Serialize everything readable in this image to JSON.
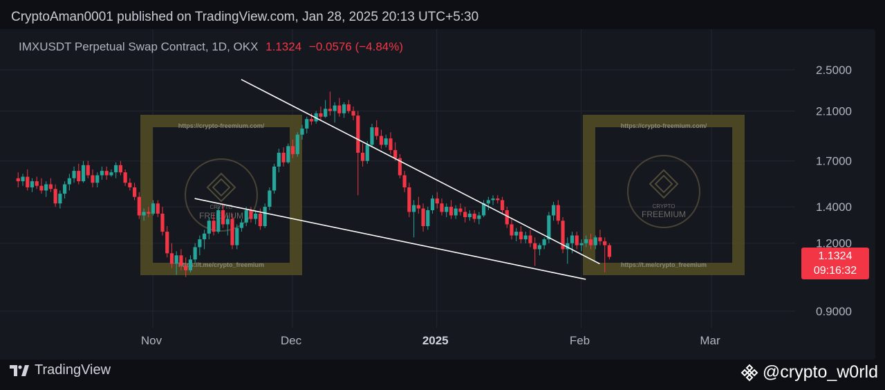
{
  "header": {
    "publisher_line": "CryptoAman0001 published on TradingView.com, Jan 28, 2025 20:13 UTC+5:30"
  },
  "symbol": {
    "name": "IMXUSDT Perpetual Swap Contract, 1D, OKX",
    "last_price": "1.1324",
    "change": "−0.0576",
    "change_pct": "(−4.84%)"
  },
  "price_tag": {
    "price": "1.1324",
    "countdown": "09:16:32"
  },
  "watermark": {
    "url_top": "https://crypto-freemium.com/",
    "url_bottom": "https://t.me/crypto_freemium",
    "brand_small": "CRYPTO",
    "brand_big": "FREEMIUM"
  },
  "footer": {
    "logo_text": "TradingView",
    "handle": "@crypto_w0rld"
  },
  "colors": {
    "up": "#26a69a",
    "down": "#f23645",
    "background": "#161820",
    "trendline": "#ffffff",
    "watermark": "#5c5424"
  },
  "chart_data": {
    "type": "candlestick",
    "scale": "log",
    "y_ticks": [
      "0.9000",
      "1.2000",
      "1.4000",
      "1.7000",
      "2.1000",
      "2.5000"
    ],
    "y_tick_values": [
      0.9,
      1.2,
      1.4,
      1.7,
      2.1,
      2.5
    ],
    "x_ticks": [
      "Nov",
      "Dec",
      "2025",
      "Feb",
      "Mar"
    ],
    "x_tick_dates": [
      "2024-11-01",
      "2024-12-01",
      "2025-01-01",
      "2025-02-01",
      "2025-03-01"
    ],
    "start_date": "2024-10-01",
    "ohlc": [
      [
        1.58,
        1.62,
        1.52,
        1.56
      ],
      [
        1.56,
        1.61,
        1.53,
        1.59
      ],
      [
        1.59,
        1.64,
        1.5,
        1.52
      ],
      [
        1.52,
        1.58,
        1.49,
        1.56
      ],
      [
        1.56,
        1.59,
        1.51,
        1.53
      ],
      [
        1.53,
        1.58,
        1.48,
        1.5
      ],
      [
        1.5,
        1.56,
        1.46,
        1.54
      ],
      [
        1.54,
        1.58,
        1.49,
        1.51
      ],
      [
        1.51,
        1.54,
        1.4,
        1.42
      ],
      [
        1.42,
        1.5,
        1.39,
        1.48
      ],
      [
        1.48,
        1.56,
        1.45,
        1.54
      ],
      [
        1.54,
        1.61,
        1.5,
        1.58
      ],
      [
        1.58,
        1.66,
        1.55,
        1.63
      ],
      [
        1.63,
        1.68,
        1.54,
        1.56
      ],
      [
        1.56,
        1.7,
        1.55,
        1.67
      ],
      [
        1.67,
        1.7,
        1.58,
        1.6
      ],
      [
        1.6,
        1.64,
        1.52,
        1.55
      ],
      [
        1.55,
        1.62,
        1.52,
        1.6
      ],
      [
        1.6,
        1.66,
        1.57,
        1.63
      ],
      [
        1.63,
        1.66,
        1.57,
        1.6
      ],
      [
        1.6,
        1.64,
        1.59,
        1.62
      ],
      [
        1.62,
        1.69,
        1.58,
        1.67
      ],
      [
        1.67,
        1.7,
        1.6,
        1.62
      ],
      [
        1.62,
        1.64,
        1.53,
        1.55
      ],
      [
        1.55,
        1.58,
        1.5,
        1.52
      ],
      [
        1.52,
        1.55,
        1.44,
        1.46
      ],
      [
        1.46,
        1.49,
        1.33,
        1.35
      ],
      [
        1.35,
        1.39,
        1.32,
        1.37
      ],
      [
        1.37,
        1.4,
        1.34,
        1.36
      ],
      [
        1.36,
        1.44,
        1.35,
        1.42
      ],
      [
        1.42,
        1.44,
        1.34,
        1.36
      ],
      [
        1.36,
        1.4,
        1.24,
        1.26
      ],
      [
        1.26,
        1.29,
        1.13,
        1.15
      ],
      [
        1.15,
        1.2,
        1.08,
        1.1
      ],
      [
        1.1,
        1.16,
        1.05,
        1.14
      ],
      [
        1.14,
        1.17,
        1.07,
        1.09
      ],
      [
        1.09,
        1.13,
        1.04,
        1.07
      ],
      [
        1.07,
        1.14,
        1.06,
        1.12
      ],
      [
        1.12,
        1.2,
        1.1,
        1.18
      ],
      [
        1.18,
        1.24,
        1.14,
        1.22
      ],
      [
        1.22,
        1.27,
        1.17,
        1.25
      ],
      [
        1.25,
        1.34,
        1.22,
        1.32
      ],
      [
        1.32,
        1.36,
        1.24,
        1.26
      ],
      [
        1.26,
        1.4,
        1.25,
        1.38
      ],
      [
        1.38,
        1.42,
        1.28,
        1.3
      ],
      [
        1.3,
        1.35,
        1.24,
        1.33
      ],
      [
        1.33,
        1.36,
        1.17,
        1.19
      ],
      [
        1.19,
        1.3,
        1.17,
        1.28
      ],
      [
        1.28,
        1.33,
        1.26,
        1.31
      ],
      [
        1.31,
        1.4,
        1.29,
        1.38
      ],
      [
        1.38,
        1.4,
        1.31,
        1.33
      ],
      [
        1.33,
        1.38,
        1.3,
        1.36
      ],
      [
        1.36,
        1.39,
        1.27,
        1.29
      ],
      [
        1.29,
        1.42,
        1.28,
        1.4
      ],
      [
        1.4,
        1.52,
        1.38,
        1.5
      ],
      [
        1.5,
        1.68,
        1.48,
        1.66
      ],
      [
        1.66,
        1.79,
        1.62,
        1.76
      ],
      [
        1.76,
        1.8,
        1.66,
        1.69
      ],
      [
        1.69,
        1.83,
        1.68,
        1.81
      ],
      [
        1.81,
        1.86,
        1.72,
        1.75
      ],
      [
        1.75,
        1.92,
        1.73,
        1.9
      ],
      [
        1.9,
        1.98,
        1.86,
        1.95
      ],
      [
        1.95,
        2.05,
        1.91,
        2.03
      ],
      [
        2.03,
        2.08,
        1.98,
        2.01
      ],
      [
        2.01,
        2.1,
        1.99,
        2.08
      ],
      [
        2.08,
        2.14,
        2.02,
        2.05
      ],
      [
        2.05,
        2.2,
        2.04,
        2.12
      ],
      [
        2.12,
        2.28,
        2.06,
        2.1
      ],
      [
        2.1,
        2.18,
        2.0,
        2.15
      ],
      [
        2.15,
        2.22,
        2.05,
        2.08
      ],
      [
        2.08,
        2.18,
        2.04,
        2.16
      ],
      [
        2.16,
        2.2,
        2.08,
        2.1
      ],
      [
        2.1,
        2.14,
        2.02,
        2.06
      ],
      [
        2.06,
        2.1,
        1.47,
        1.76
      ],
      [
        1.76,
        1.83,
        1.66,
        1.7
      ],
      [
        1.7,
        1.85,
        1.68,
        1.82
      ],
      [
        1.82,
        1.99,
        1.8,
        1.96
      ],
      [
        1.96,
        2.02,
        1.86,
        1.89
      ],
      [
        1.89,
        1.94,
        1.79,
        1.82
      ],
      [
        1.82,
        1.9,
        1.8,
        1.87
      ],
      [
        1.87,
        1.92,
        1.75,
        1.78
      ],
      [
        1.78,
        1.84,
        1.7,
        1.72
      ],
      [
        1.72,
        1.75,
        1.58,
        1.6
      ],
      [
        1.6,
        1.63,
        1.49,
        1.52
      ],
      [
        1.52,
        1.55,
        1.34,
        1.37
      ],
      [
        1.37,
        1.44,
        1.23,
        1.41
      ],
      [
        1.41,
        1.46,
        1.36,
        1.39
      ],
      [
        1.39,
        1.42,
        1.26,
        1.29
      ],
      [
        1.29,
        1.4,
        1.27,
        1.38
      ],
      [
        1.38,
        1.47,
        1.36,
        1.45
      ],
      [
        1.45,
        1.49,
        1.39,
        1.42
      ],
      [
        1.42,
        1.45,
        1.35,
        1.37
      ],
      [
        1.37,
        1.42,
        1.34,
        1.4
      ],
      [
        1.4,
        1.44,
        1.33,
        1.35
      ],
      [
        1.35,
        1.41,
        1.33,
        1.39
      ],
      [
        1.39,
        1.42,
        1.35,
        1.37
      ],
      [
        1.37,
        1.4,
        1.31,
        1.34
      ],
      [
        1.34,
        1.38,
        1.32,
        1.36
      ],
      [
        1.36,
        1.38,
        1.31,
        1.33
      ],
      [
        1.33,
        1.37,
        1.3,
        1.35
      ],
      [
        1.35,
        1.44,
        1.34,
        1.42
      ],
      [
        1.42,
        1.46,
        1.38,
        1.44
      ],
      [
        1.44,
        1.47,
        1.41,
        1.45
      ],
      [
        1.45,
        1.47,
        1.42,
        1.44
      ],
      [
        1.44,
        1.46,
        1.36,
        1.38
      ],
      [
        1.38,
        1.4,
        1.28,
        1.3
      ],
      [
        1.3,
        1.33,
        1.22,
        1.24
      ],
      [
        1.24,
        1.28,
        1.21,
        1.26
      ],
      [
        1.26,
        1.29,
        1.2,
        1.22
      ],
      [
        1.22,
        1.26,
        1.2,
        1.24
      ],
      [
        1.24,
        1.27,
        1.18,
        1.2
      ],
      [
        1.2,
        1.23,
        1.09,
        1.17
      ],
      [
        1.17,
        1.2,
        1.14,
        1.19
      ],
      [
        1.19,
        1.23,
        1.17,
        1.22
      ],
      [
        1.22,
        1.37,
        1.2,
        1.35
      ],
      [
        1.35,
        1.43,
        1.32,
        1.41
      ],
      [
        1.41,
        1.44,
        1.3,
        1.32
      ],
      [
        1.32,
        1.34,
        1.15,
        1.17
      ],
      [
        1.17,
        1.23,
        1.1,
        1.2
      ],
      [
        1.2,
        1.26,
        1.15,
        1.24
      ],
      [
        1.24,
        1.26,
        1.17,
        1.19
      ],
      [
        1.19,
        1.22,
        1.16,
        1.2
      ],
      [
        1.2,
        1.24,
        1.18,
        1.22
      ],
      [
        1.22,
        1.25,
        1.17,
        1.19
      ],
      [
        1.19,
        1.24,
        1.17,
        1.23
      ],
      [
        1.23,
        1.27,
        1.19,
        1.21
      ],
      [
        1.21,
        1.23,
        1.06,
        1.19
      ],
      [
        1.19,
        1.2,
        1.12,
        1.1324
      ]
    ],
    "trendlines": [
      {
        "from": [
          "2024-11-20",
          2.4
        ],
        "to": [
          "2025-02-05",
          1.1
        ]
      },
      {
        "from": [
          "2024-11-10",
          1.45
        ],
        "to": [
          "2025-02-02",
          1.03
        ]
      }
    ]
  }
}
